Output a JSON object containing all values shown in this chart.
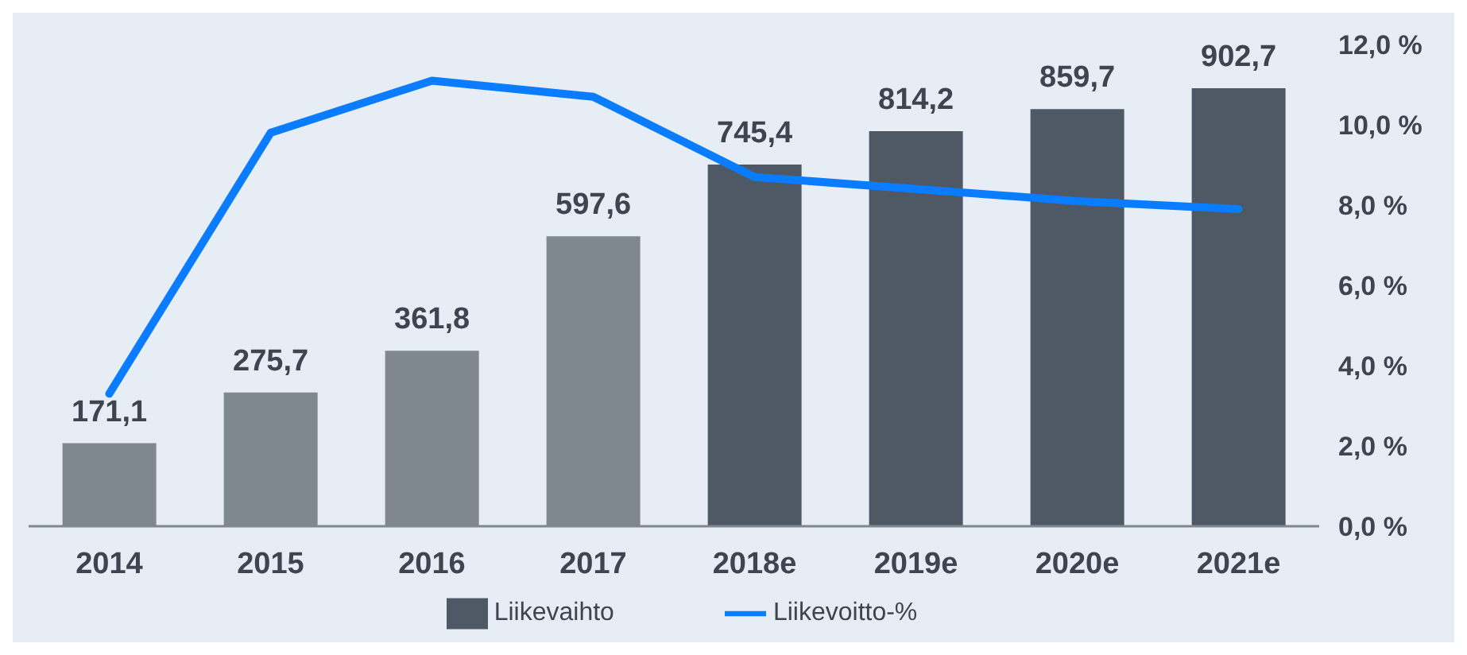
{
  "chart_data": {
    "type": "bar",
    "categories": [
      "2014",
      "2015",
      "2016",
      "2017",
      "2018e",
      "2019e",
      "2020e",
      "2021e"
    ],
    "series": [
      {
        "name": "Liikevaihto",
        "color": "#4f5966",
        "colors": [
          "#7f888e",
          "#7f888e",
          "#7f888e",
          "#7f888e",
          "#4f5966",
          "#4f5966",
          "#4f5966",
          "#4f5966"
        ],
        "values": [
          171.1,
          275.7,
          361.8,
          597.6,
          745.4,
          814.2,
          859.7,
          902.7
        ],
        "value_labels": [
          "171,1",
          "275,7",
          "361,8",
          "597,6",
          "745,4",
          "814,2",
          "859,7",
          "902,7"
        ]
      },
      {
        "name": "Liikevoitto-%",
        "type": "line",
        "axis": "y2",
        "color": "#0a7cff",
        "values": [
          3.3,
          9.8,
          11.1,
          10.7,
          8.7,
          8.4,
          8.1,
          7.9
        ]
      }
    ],
    "y2lim": [
      0,
      12
    ],
    "y2ticks": [
      {
        "value": 0,
        "label": "0,0 %"
      },
      {
        "value": 2,
        "label": "2,0 %"
      },
      {
        "value": 4,
        "label": "4,0 %"
      },
      {
        "value": 6,
        "label": "6,0 %"
      },
      {
        "value": 8,
        "label": "8,0 %"
      },
      {
        "value": 10,
        "label": "10,0 %"
      },
      {
        "value": 12,
        "label": "12,0 %"
      }
    ],
    "grid": false,
    "legend": "bottom",
    "marker": "none",
    "line_style": "solid"
  }
}
